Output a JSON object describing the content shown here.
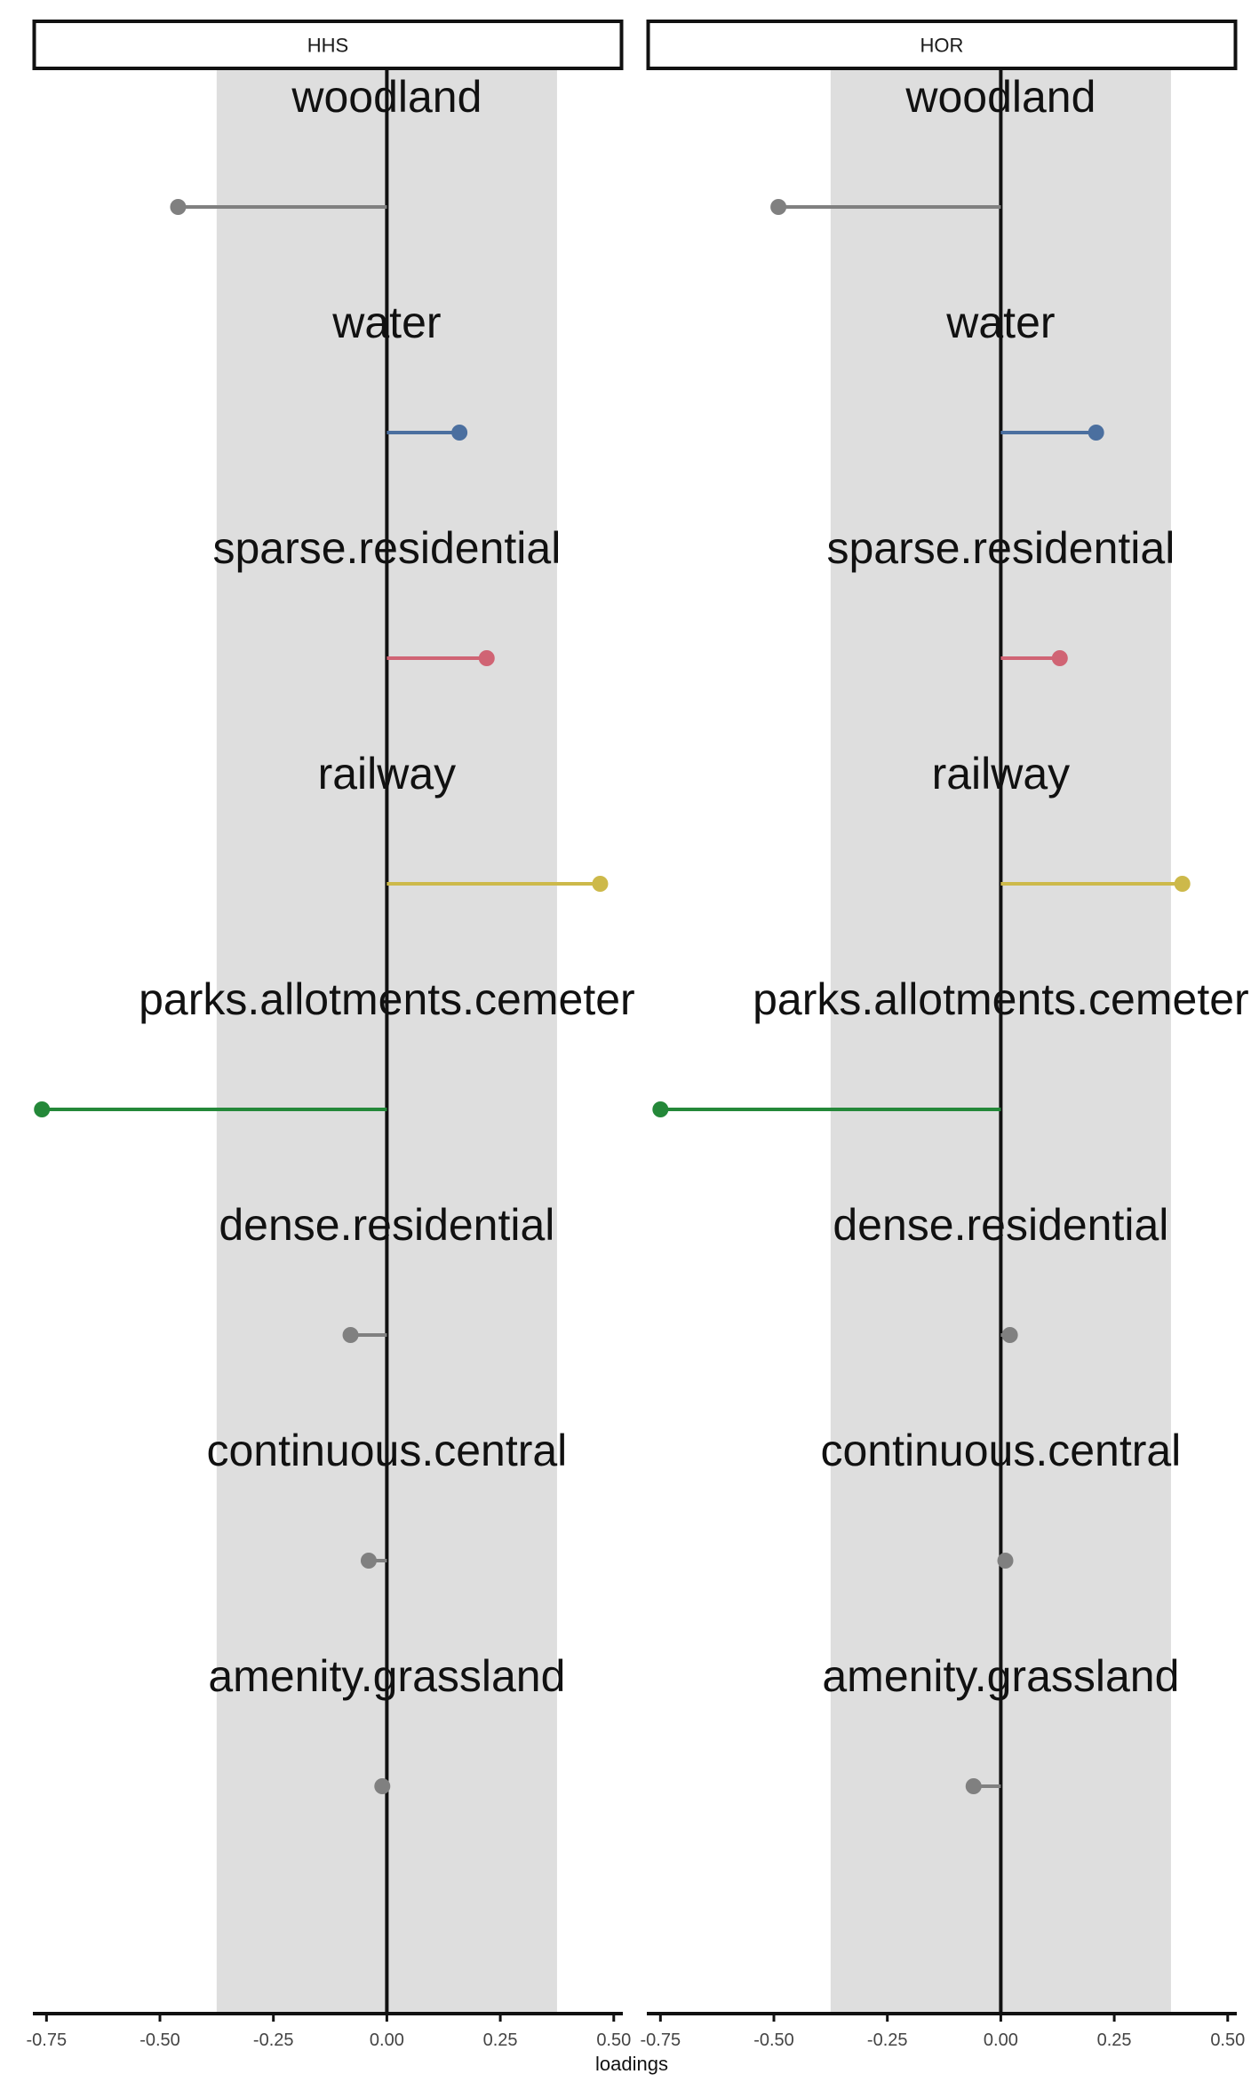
{
  "chart_data": {
    "type": "lollipop",
    "xlabel": "loadings",
    "xlim": [
      -0.78,
      0.52
    ],
    "xticks": [
      -0.75,
      -0.5,
      -0.25,
      0.0,
      0.25,
      0.5
    ],
    "xtick_labels": [
      "-0.75",
      "-0.50",
      "-0.25",
      "0.00",
      "0.25",
      "0.50"
    ],
    "band": [
      -0.375,
      0.375
    ],
    "band_color": "#dedede",
    "categories": [
      "woodland",
      "water",
      "sparse.residential",
      "railway",
      "parks.allotments.cemeter",
      "dense.residential",
      "continuous.central",
      "amenity.grassland"
    ],
    "category_colors": [
      "#808080",
      "#4b6f9f",
      "#d06474",
      "#cdb94a",
      "#248839",
      "#808080",
      "#808080",
      "#808080"
    ],
    "panels": [
      {
        "name": "HHS",
        "values": [
          -0.46,
          0.16,
          0.22,
          0.47,
          -0.76,
          -0.08,
          -0.04,
          -0.01
        ]
      },
      {
        "name": "HOR",
        "values": [
          -0.49,
          0.21,
          0.13,
          0.4,
          -0.75,
          0.02,
          0.01,
          -0.06
        ]
      }
    ]
  }
}
